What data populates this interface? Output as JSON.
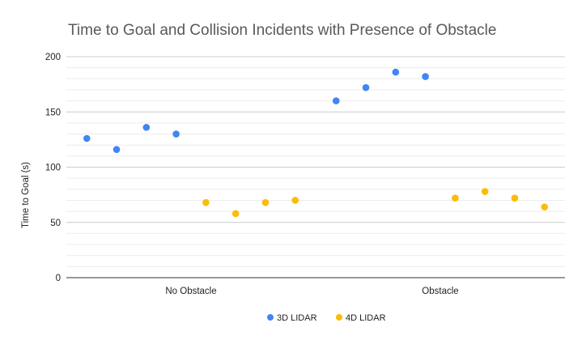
{
  "chart_data": {
    "type": "scatter",
    "title": "Time to Goal and Collision Incidents with Presence of Obstacle",
    "xlabel": "",
    "ylabel": "Time to Goal (s)",
    "categories": [
      "No Obstacle",
      "Obstacle"
    ],
    "ylim": [
      0,
      200
    ],
    "yticks": [
      0,
      50,
      100,
      150,
      200
    ],
    "grid": true,
    "legend_position": "bottom",
    "series": [
      {
        "name": "3D LIDAR",
        "color": "#4285f4",
        "groups": [
          [
            126,
            116,
            136,
            130
          ],
          [
            160,
            172,
            186,
            182
          ]
        ]
      },
      {
        "name": "4D LIDAR",
        "color": "#fbbc04",
        "groups": [
          [
            68,
            58,
            68,
            70
          ],
          [
            72,
            78,
            72,
            64
          ]
        ]
      }
    ]
  }
}
